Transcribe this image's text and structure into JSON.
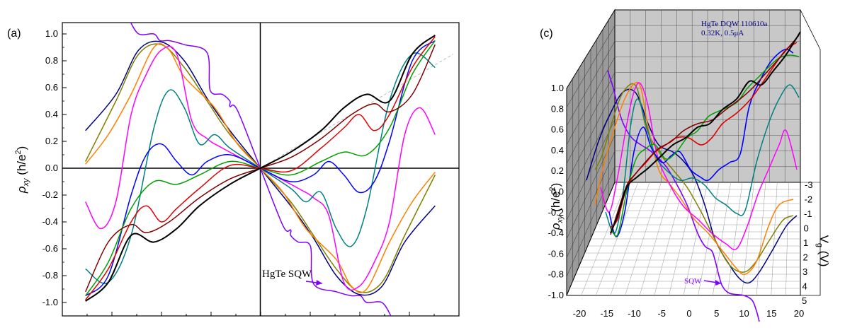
{
  "chart_data": [
    {
      "type": "line",
      "panel_label": "(a)",
      "ylabel": "ρxy (h/e²)",
      "ylabel_main": "ρ",
      "ylabel_sub": "xy",
      "ylabel_rest": " (h/e",
      "ylabel_sup": "2",
      "ylabel_close": ")",
      "xlabel": "",
      "ylim": [
        -1.1,
        1.1
      ],
      "xlim": [
        -1.2,
        1.2
      ],
      "yticks": [
        "-1.0",
        "-0.8",
        "-0.6",
        "-0.4",
        "-0.2",
        "0.0",
        "0.2",
        "0.4",
        "0.6",
        "0.8",
        "1.0"
      ],
      "annotation": "HgTe SQW",
      "annotation_color": "#8000ff",
      "grid": false,
      "series": [
        {
          "color": "#8000ff",
          "points": [
            [
              -0.86,
              1.1
            ],
            [
              -0.8,
              1.0
            ],
            [
              -0.7,
              1.0
            ],
            [
              -0.66,
              0.95
            ],
            [
              -0.6,
              0.95
            ],
            [
              -0.5,
              0.92
            ],
            [
              -0.35,
              0.86
            ],
            [
              -0.33,
              0.58
            ],
            [
              -0.25,
              0.55
            ],
            [
              -0.2,
              0.5
            ],
            [
              -0.2,
              0.46
            ],
            [
              -0.15,
              0.43
            ],
            [
              0,
              0
            ],
            [
              0.15,
              -0.43
            ],
            [
              0.2,
              -0.46
            ],
            [
              0.2,
              -0.5
            ],
            [
              0.25,
              -0.55
            ],
            [
              0.33,
              -0.58
            ],
            [
              0.35,
              -0.86
            ],
            [
              0.5,
              -0.92
            ],
            [
              0.6,
              -0.95
            ],
            [
              0.66,
              -0.95
            ],
            [
              0.7,
              -1.0
            ],
            [
              0.8,
              -1.0
            ],
            [
              0.86,
              -1.1
            ]
          ]
        },
        {
          "color": "#000080",
          "points": [
            [
              -1.15,
              0.28
            ],
            [
              -0.95,
              0.55
            ],
            [
              -0.8,
              0.88
            ],
            [
              -0.65,
              0.94
            ],
            [
              -0.5,
              0.8
            ],
            [
              -0.35,
              0.52
            ],
            [
              -0.2,
              0.28
            ],
            [
              0,
              0
            ],
            [
              0.2,
              -0.28
            ],
            [
              0.35,
              -0.52
            ],
            [
              0.5,
              -0.8
            ],
            [
              0.65,
              -0.94
            ],
            [
              0.8,
              -0.88
            ],
            [
              0.95,
              -0.55
            ],
            [
              1.15,
              -0.28
            ]
          ]
        },
        {
          "color": "#808000",
          "points": [
            [
              -1.15,
              0.05
            ],
            [
              -0.95,
              0.5
            ],
            [
              -0.8,
              0.85
            ],
            [
              -0.65,
              0.92
            ],
            [
              -0.5,
              0.75
            ],
            [
              -0.35,
              0.5
            ],
            [
              -0.2,
              0.25
            ],
            [
              0,
              0
            ],
            [
              0.2,
              -0.25
            ],
            [
              0.35,
              -0.5
            ],
            [
              0.5,
              -0.75
            ],
            [
              0.65,
              -0.92
            ],
            [
              0.8,
              -0.85
            ],
            [
              0.95,
              -0.5
            ],
            [
              1.15,
              -0.05
            ]
          ]
        },
        {
          "color": "#ff8000",
          "points": [
            [
              -1.15,
              0.03
            ],
            [
              -1.0,
              0.25
            ],
            [
              -0.85,
              0.55
            ],
            [
              -0.7,
              0.9
            ],
            [
              -0.6,
              0.88
            ],
            [
              -0.5,
              0.68
            ],
            [
              -0.3,
              0.45
            ],
            [
              -0.15,
              0.18
            ],
            [
              0,
              0
            ],
            [
              0.15,
              -0.18
            ],
            [
              0.3,
              -0.45
            ],
            [
              0.5,
              -0.68
            ],
            [
              0.6,
              -0.88
            ],
            [
              0.7,
              -0.9
            ],
            [
              0.85,
              -0.55
            ],
            [
              1.0,
              -0.25
            ],
            [
              1.15,
              -0.03
            ]
          ]
        },
        {
          "color": "#ff00ff",
          "points": [
            [
              -1.15,
              -0.25
            ],
            [
              -1.05,
              -0.45
            ],
            [
              -0.95,
              -0.25
            ],
            [
              -0.85,
              0.4
            ],
            [
              -0.75,
              0.7
            ],
            [
              -0.65,
              0.88
            ],
            [
              -0.55,
              0.85
            ],
            [
              -0.45,
              0.35
            ],
            [
              -0.35,
              0.22
            ],
            [
              -0.25,
              0.15
            ],
            [
              0,
              0
            ],
            [
              0.25,
              -0.15
            ],
            [
              0.35,
              -0.22
            ],
            [
              0.45,
              -0.35
            ],
            [
              0.55,
              -0.85
            ],
            [
              0.65,
              -0.88
            ],
            [
              0.75,
              -0.7
            ],
            [
              0.85,
              -0.4
            ],
            [
              0.95,
              0.25
            ],
            [
              1.05,
              0.45
            ],
            [
              1.15,
              0.25
            ]
          ]
        },
        {
          "color": "#008080",
          "points": [
            [
              -1.15,
              -0.75
            ],
            [
              -1.0,
              -0.85
            ],
            [
              -0.85,
              -0.5
            ],
            [
              -0.7,
              0.3
            ],
            [
              -0.6,
              0.58
            ],
            [
              -0.5,
              0.45
            ],
            [
              -0.4,
              0.18
            ],
            [
              -0.3,
              0.25
            ],
            [
              -0.2,
              0.15
            ],
            [
              0,
              0
            ],
            [
              0.2,
              -0.15
            ],
            [
              0.3,
              -0.25
            ],
            [
              0.4,
              -0.18
            ],
            [
              0.5,
              -0.45
            ],
            [
              0.6,
              -0.58
            ],
            [
              0.7,
              -0.3
            ],
            [
              0.85,
              0.5
            ],
            [
              1.0,
              0.85
            ],
            [
              1.15,
              0.75
            ]
          ]
        },
        {
          "color": "#0000ff",
          "points": [
            [
              -1.15,
              -0.95
            ],
            [
              -1.0,
              -0.8
            ],
            [
              -0.85,
              -0.2
            ],
            [
              -0.75,
              0.1
            ],
            [
              -0.65,
              0.18
            ],
            [
              -0.55,
              0.05
            ],
            [
              -0.45,
              -0.05
            ],
            [
              -0.35,
              0.05
            ],
            [
              -0.2,
              0.1
            ],
            [
              0,
              0
            ],
            [
              0.2,
              -0.1
            ],
            [
              0.35,
              -0.05
            ],
            [
              0.45,
              0.05
            ],
            [
              0.55,
              -0.05
            ],
            [
              0.65,
              -0.18
            ],
            [
              0.75,
              -0.1
            ],
            [
              0.85,
              0.2
            ],
            [
              1.0,
              0.8
            ],
            [
              1.15,
              0.95
            ]
          ]
        },
        {
          "color": "#00a000",
          "points": [
            [
              -1.15,
              -0.95
            ],
            [
              -1.0,
              -0.7
            ],
            [
              -0.85,
              -0.3
            ],
            [
              -0.7,
              -0.1
            ],
            [
              -0.55,
              -0.12
            ],
            [
              -0.4,
              -0.05
            ],
            [
              -0.2,
              0.05
            ],
            [
              0,
              0
            ],
            [
              0.2,
              -0.05
            ],
            [
              0.4,
              0.05
            ],
            [
              0.55,
              0.12
            ],
            [
              0.7,
              0.1
            ],
            [
              0.85,
              0.3
            ],
            [
              1.0,
              0.7
            ],
            [
              1.15,
              0.95
            ]
          ]
        },
        {
          "color": "#e00000",
          "points": [
            [
              -1.15,
              -0.98
            ],
            [
              -1.0,
              -0.75
            ],
            [
              -0.85,
              -0.4
            ],
            [
              -0.75,
              -0.28
            ],
            [
              -0.65,
              -0.4
            ],
            [
              -0.55,
              -0.3
            ],
            [
              -0.4,
              -0.15
            ],
            [
              -0.2,
              0.02
            ],
            [
              0,
              0
            ],
            [
              0.2,
              -0.02
            ],
            [
              0.4,
              0.15
            ],
            [
              0.55,
              0.3
            ],
            [
              0.65,
              0.4
            ],
            [
              0.75,
              0.28
            ],
            [
              0.85,
              0.4
            ],
            [
              1.0,
              0.75
            ],
            [
              1.15,
              0.98
            ]
          ]
        },
        {
          "color": "#800000",
          "points": [
            [
              -1.15,
              -0.92
            ],
            [
              -1.0,
              -0.55
            ],
            [
              -0.85,
              -0.42
            ],
            [
              -0.75,
              -0.48
            ],
            [
              -0.6,
              -0.4
            ],
            [
              -0.4,
              -0.22
            ],
            [
              -0.2,
              -0.08
            ],
            [
              0,
              0
            ],
            [
              0.2,
              0.08
            ],
            [
              0.4,
              0.22
            ],
            [
              0.6,
              0.4
            ],
            [
              0.75,
              0.48
            ],
            [
              0.85,
              0.42
            ],
            [
              1.0,
              0.55
            ],
            [
              1.15,
              0.92
            ]
          ]
        },
        {
          "color": "#000000",
          "points": [
            [
              -1.15,
              -0.99
            ],
            [
              -1.0,
              -0.85
            ],
            [
              -0.85,
              -0.5
            ],
            [
              -0.7,
              -0.55
            ],
            [
              -0.55,
              -0.45
            ],
            [
              -0.4,
              -0.28
            ],
            [
              -0.2,
              -0.12
            ],
            [
              0,
              0
            ],
            [
              0.2,
              0.12
            ],
            [
              0.4,
              0.28
            ],
            [
              0.55,
              0.45
            ],
            [
              0.7,
              0.55
            ],
            [
              0.85,
              0.5
            ],
            [
              1.0,
              0.85
            ],
            [
              1.15,
              0.99
            ]
          ]
        }
      ]
    },
    {
      "type": "line",
      "panel_label": "(c)",
      "ylabel": "ρxy (h/e²)",
      "ylabel_main": "ρ",
      "ylabel_sub": "xy",
      "ylabel_rest": " (h/e",
      "ylabel_sup": "2",
      "ylabel_close": ")",
      "zlabel": "Vg (V)",
      "zlabel_main": "V",
      "zlabel_sub": "g",
      "zlabel_rest": " (V)",
      "yticks": [
        "-1.0",
        "-0.8",
        "-0.6",
        "-0.4",
        "-0.2",
        "0.0",
        "0.2",
        "0.4",
        "0.6",
        "0.8",
        "1.0"
      ],
      "xticks": [
        "-20",
        "-15",
        "-10",
        "-5",
        "0",
        "5",
        "10",
        "15",
        "20"
      ],
      "zticks": [
        "-3",
        "-2",
        "-1",
        "0",
        "1",
        "2",
        "3",
        "4",
        "5"
      ],
      "annotation_line1": "HgTe DQW 110610a",
      "annotation_line2": "0.32K, 0.5μA",
      "annotation_sqw": "SQW",
      "annotation_color": "#000080",
      "sqw_color": "#8000ff",
      "grid": true
    }
  ]
}
